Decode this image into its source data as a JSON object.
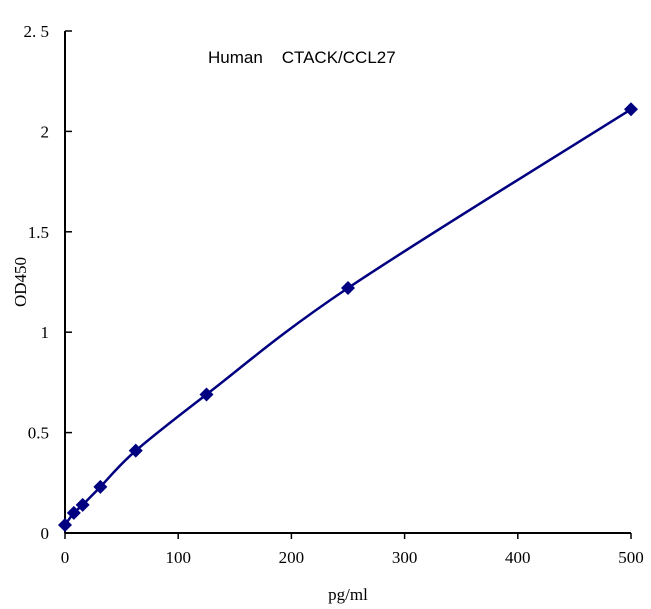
{
  "chart_data": {
    "type": "line",
    "title": "Human    CTACK/CCL27",
    "xlabel": "pg/ml",
    "ylabel": "OD450",
    "xlim": [
      0,
      500
    ],
    "ylim": [
      0,
      2.5
    ],
    "xticks": [
      "0",
      "100",
      "200",
      "300",
      "400",
      "500"
    ],
    "yticks": [
      "0",
      "0.5",
      "1",
      "1.5",
      "2",
      "2. 5"
    ],
    "grid": false,
    "series": [
      {
        "x": [
          0,
          7.8,
          15.6,
          31.25,
          62.5,
          125,
          250,
          500
        ],
        "y": [
          0.04,
          0.1,
          0.14,
          0.23,
          0.41,
          0.69,
          1.22,
          2.11
        ],
        "color": "#000080",
        "marker": "diamond"
      }
    ]
  }
}
